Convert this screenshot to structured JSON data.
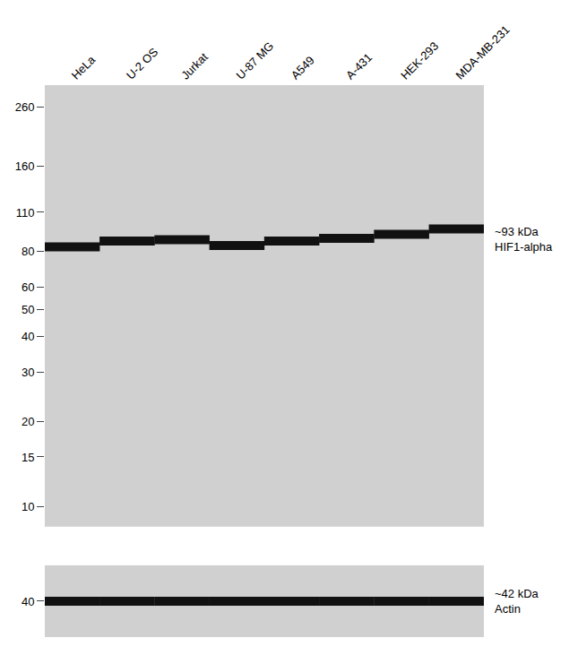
{
  "chart_data": [
    {
      "type": "scatter",
      "categories": [
        "HeLa",
        "U-2 OS",
        "Jurkat",
        "U-87 MG",
        "A549",
        "A-431",
        "HEK-293",
        "MDA-MB-231"
      ],
      "series": [
        {
          "color": "#111111",
          "values": [
            83,
            87,
            88,
            84,
            87,
            89,
            92,
            96
          ]
        }
      ],
      "log": "y",
      "ylim": [
        8.5,
        310
      ],
      "yticks": [
        260,
        160,
        110,
        80,
        60,
        50,
        40,
        30,
        20,
        15,
        10
      ],
      "annotations": [
        "~93 kDa",
        "HIF1-alpha"
      ],
      "grid": false
    },
    {
      "type": "scatter",
      "categories": [
        "HeLa",
        "U-2 OS",
        "Jurkat",
        "U-87 MG",
        "A549",
        "A-431",
        "HEK-293",
        "MDA-MB-231"
      ],
      "series": [
        {
          "color": "#111111",
          "values": [
            40,
            40,
            40,
            40,
            40,
            40,
            40,
            40
          ]
        }
      ],
      "ylim": [
        36,
        44
      ],
      "yticks": [
        40
      ],
      "annotations": [
        "~42 kDa",
        "Actin"
      ],
      "grid": false,
      "tick_labels": "y"
    }
  ]
}
